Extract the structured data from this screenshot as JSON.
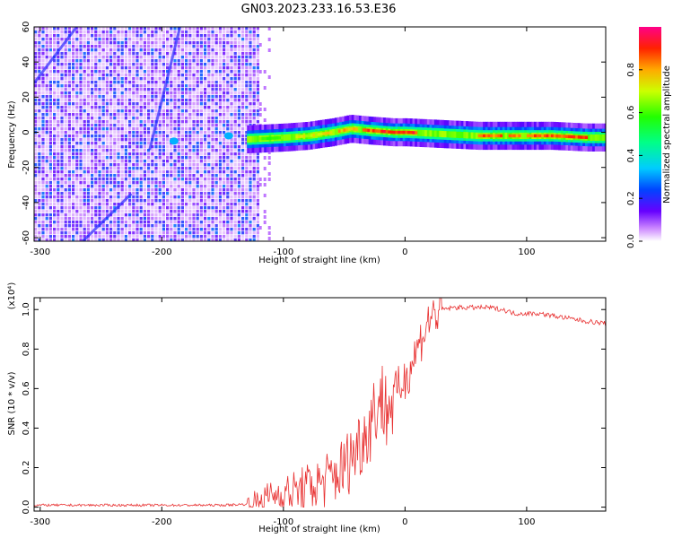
{
  "title": "GN03.2023.233.16.53.E36",
  "colors": {
    "snr_line": "#e83030",
    "spectrogram_bg": "#ffffff"
  },
  "chart_data": [
    {
      "type": "heatmap",
      "xlabel": "Height of straight line (km)",
      "ylabel": "Frequency (Hz)",
      "xlim": [
        -305,
        165
      ],
      "ylim": [
        -62,
        60
      ],
      "x_ticks": [
        -300,
        -200,
        -100,
        0,
        100
      ],
      "y_ticks": [
        -60,
        -40,
        -20,
        0,
        20,
        40,
        60
      ],
      "colorbar": {
        "label": "Normalized spectral amplitude",
        "range": [
          0.0,
          1.0
        ],
        "ticks": [
          "0.0",
          "0.2",
          "0.4",
          "0.6",
          "0.8"
        ],
        "colormap": "rainbow"
      },
      "features": [
        {
          "name": "noise_region",
          "x_range": [
            -305,
            -120
          ],
          "amplitude": 0.1
        },
        {
          "name": "signal_track",
          "x": [
            -130,
            -100,
            -80,
            -60,
            -45,
            -30,
            -10,
            0,
            30,
            60,
            80,
            100,
            120,
            150,
            165
          ],
          "y": [
            -4,
            -3,
            -2,
            0,
            2,
            1,
            0,
            0,
            -1,
            -2,
            -2,
            -2,
            -2,
            -3,
            -3
          ]
        }
      ]
    },
    {
      "type": "line",
      "xlabel": "Height of straight line (km)",
      "ylabel": "SNR (10 * v/v)",
      "y_multiplier": "(x10⁴)",
      "xlim": [
        -305,
        165
      ],
      "ylim": [
        -0.02,
        1.06
      ],
      "x_ticks": [
        -300,
        -200,
        -100,
        0,
        100
      ],
      "y_ticks": [
        "0.0",
        "0.2",
        "0.4",
        "0.6",
        "0.8",
        "1.0"
      ],
      "x": [
        -305,
        -280,
        -250,
        -200,
        -150,
        -130,
        -120,
        -110,
        -100,
        -90,
        -80,
        -70,
        -60,
        -50,
        -45,
        -40,
        -35,
        -30,
        -25,
        -20,
        -15,
        -10,
        -5,
        0,
        5,
        10,
        15,
        20,
        25,
        30,
        40,
        50,
        60,
        70,
        80,
        90,
        100,
        110,
        120,
        130,
        140,
        150,
        165
      ],
      "y": [
        0.01,
        0.01,
        0.01,
        0.01,
        0.01,
        0.015,
        0.03,
        0.06,
        0.07,
        0.08,
        0.1,
        0.12,
        0.15,
        0.2,
        0.25,
        0.3,
        0.35,
        0.4,
        0.5,
        0.55,
        0.5,
        0.55,
        0.6,
        0.65,
        0.72,
        0.8,
        0.88,
        0.95,
        0.98,
        1.0,
        1.01,
        1.01,
        1.01,
        1.01,
        1.0,
        0.98,
        0.98,
        0.98,
        0.97,
        0.96,
        0.95,
        0.94,
        0.93
      ]
    }
  ]
}
